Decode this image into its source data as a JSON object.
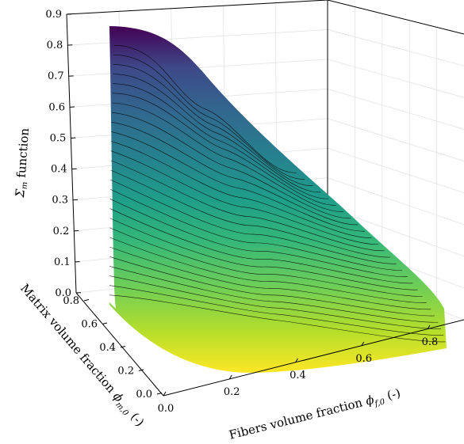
{
  "chart_data": {
    "type": "surface",
    "x_axis": {
      "label": "Fibers volume fraction φ_{f,0} (-)",
      "ticks": [
        "0.0",
        "0.2",
        "0.4",
        "0.6",
        "0.8"
      ],
      "range": [
        0,
        0.9
      ]
    },
    "y_axis": {
      "label": "Matrix volume fraction φ_{m,0} (-)",
      "ticks": [
        "0.0",
        "0.2",
        "0.4",
        "0.6",
        "0.8"
      ],
      "range": [
        0,
        0.9
      ]
    },
    "z_axis": {
      "label": "Σ_m function",
      "ticks": [
        "0.0",
        "0.1",
        "0.2",
        "0.3",
        "0.4",
        "0.5",
        "0.6",
        "0.7",
        "0.8",
        "0.9"
      ],
      "range": [
        0,
        0.9
      ]
    },
    "domain": "φ_f + φ_m ≤ 0.9",
    "surface_profile": {
      "z_along_matrix_axis_at_low_fiber": [
        {
          "phi_m": 0.0,
          "z": 0.0
        },
        {
          "phi_m": 0.1,
          "z": 0.02
        },
        {
          "phi_m": 0.2,
          "z": 0.06
        },
        {
          "phi_m": 0.3,
          "z": 0.14
        },
        {
          "phi_m": 0.4,
          "z": 0.24
        },
        {
          "phi_m": 0.5,
          "z": 0.36
        },
        {
          "phi_m": 0.6,
          "z": 0.5
        },
        {
          "phi_m": 0.7,
          "z": 0.65
        },
        {
          "phi_m": 0.8,
          "z": 0.8
        },
        {
          "phi_m": 0.9,
          "z": 0.92
        }
      ],
      "max_value": 0.92
    },
    "colormap": "viridis",
    "contour_lines": true,
    "grid": true
  }
}
